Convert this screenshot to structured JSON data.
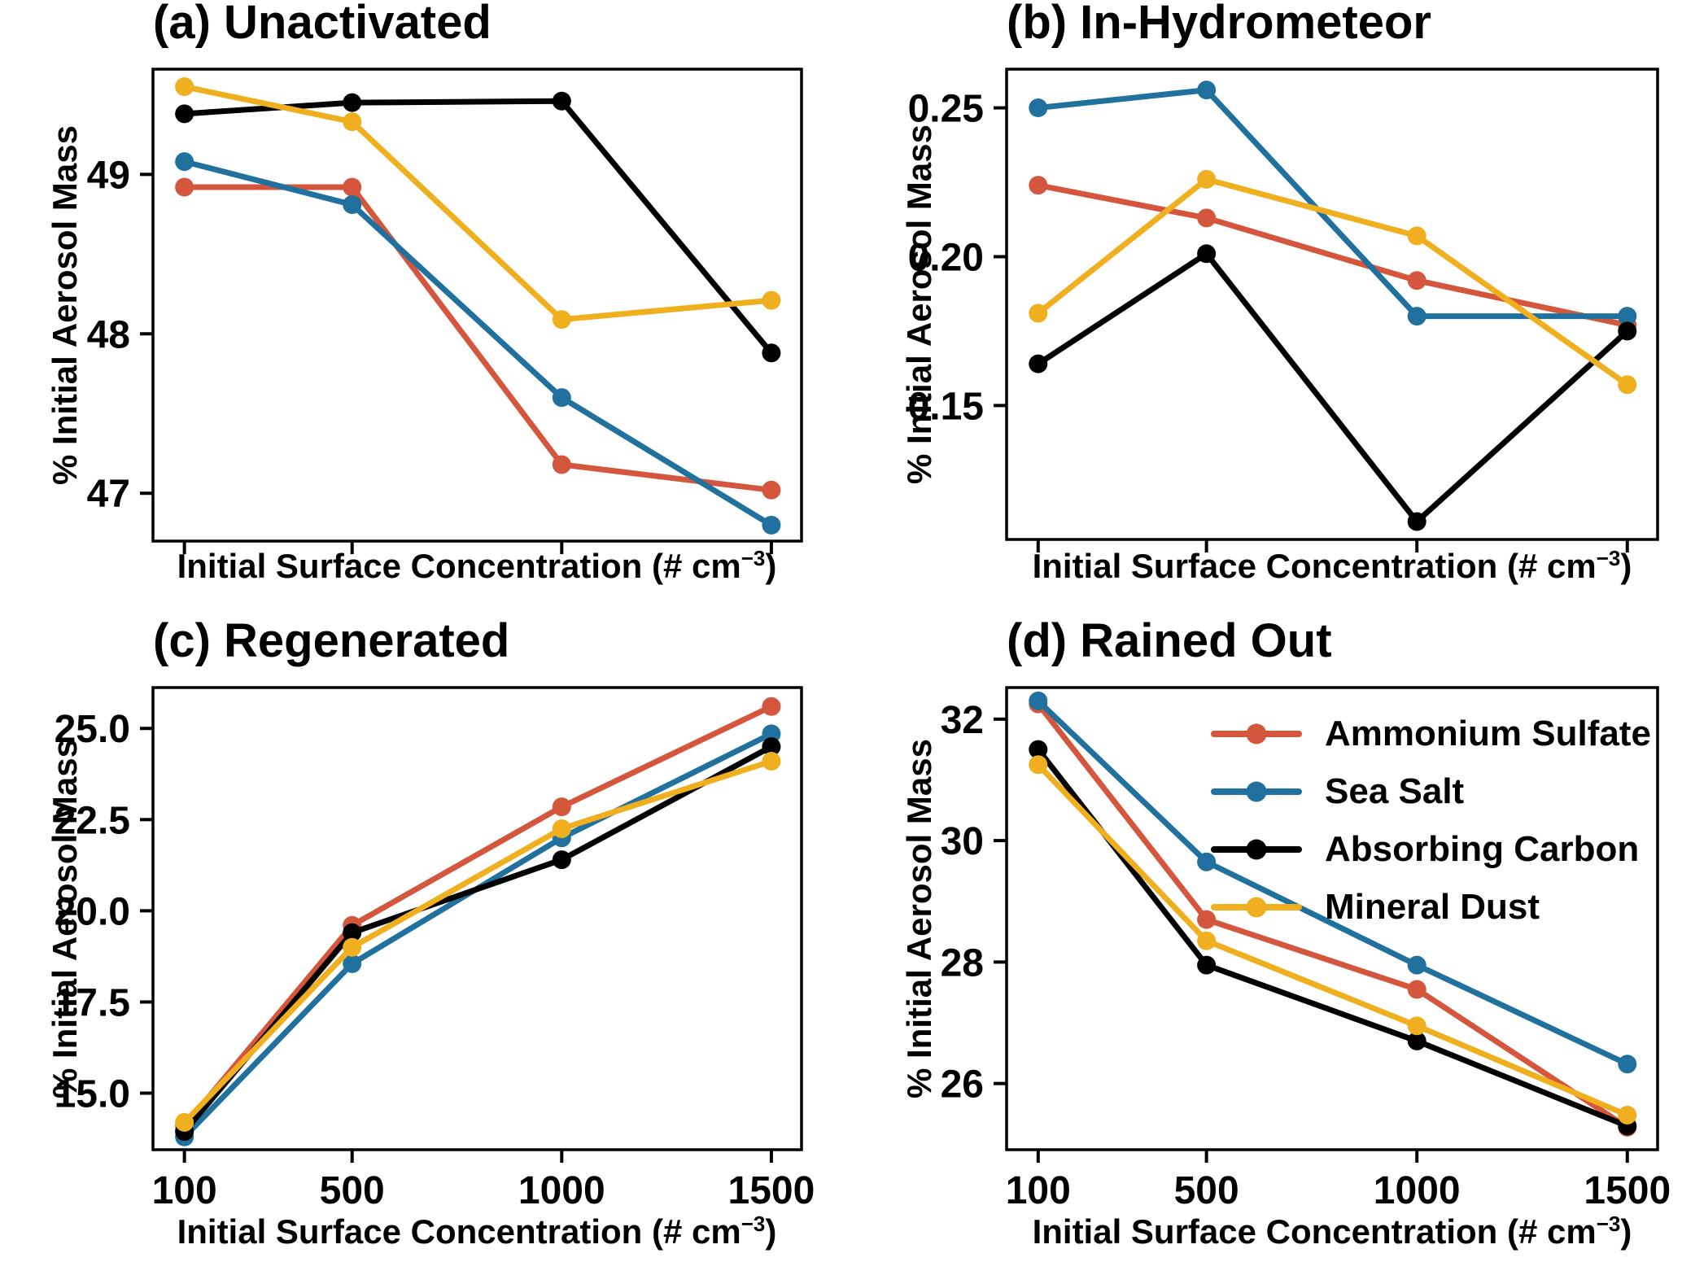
{
  "figure": {
    "background": "#FFFFFF",
    "strings": {
      "ylabel": "% Initial Aerosol Mass",
      "xlabel_prefix": "Initial Surface Concentration (# cm",
      "xlabel_sup": "−3",
      "xlabel_suffix": ")"
    }
  },
  "colors": {
    "ammonium_sulfate": "#D4563C",
    "sea_salt": "#21719E",
    "absorbing_carbon": "#000000",
    "mineral_dust": "#EFAF1E",
    "axis": "#000000"
  },
  "legend": {
    "position": "upper-right-of-panel-d",
    "items": [
      {
        "label": "Ammonium Sulfate",
        "color_key": "ammonium_sulfate"
      },
      {
        "label": "Sea Salt",
        "color_key": "sea_salt"
      },
      {
        "label": "Absorbing Carbon",
        "color_key": "absorbing_carbon"
      },
      {
        "label": "Mineral Dust",
        "color_key": "mineral_dust"
      }
    ]
  },
  "chart_data": [
    {
      "id": "a",
      "type": "line",
      "title": "(a) Unactivated",
      "xlabel": "Initial Surface Concentration (# cm−3)",
      "ylabel": "% Initial Aerosol Mass",
      "x": [
        100,
        500,
        1000,
        1500
      ],
      "x_tick_labels": [
        "100",
        "500",
        "1000",
        "1500"
      ],
      "show_x_tick_labels": false,
      "xlim": [
        25,
        1572
      ],
      "ylim": [
        46.7,
        49.66
      ],
      "grid": false,
      "yticks": [
        {
          "value": 49,
          "label": "49"
        },
        {
          "value": 48,
          "label": "48"
        },
        {
          "value": 47,
          "label": "47"
        }
      ],
      "series": [
        {
          "name": "Ammonium Sulfate",
          "color_key": "ammonium_sulfate",
          "values": [
            48.92,
            48.92,
            47.18,
            47.02
          ]
        },
        {
          "name": "Sea Salt",
          "color_key": "sea_salt",
          "values": [
            49.08,
            48.81,
            47.6,
            46.8
          ]
        },
        {
          "name": "Absorbing Carbon",
          "color_key": "absorbing_carbon",
          "values": [
            49.38,
            49.45,
            49.46,
            47.88
          ]
        },
        {
          "name": "Mineral Dust",
          "color_key": "mineral_dust",
          "values": [
            49.55,
            49.33,
            48.09,
            48.21
          ]
        }
      ]
    },
    {
      "id": "b",
      "type": "line",
      "title": "(b) In-Hydrometeor",
      "xlabel": "Initial Surface Concentration (# cm−3)",
      "ylabel": "% Initial Aerosol Mass",
      "x": [
        100,
        500,
        1000,
        1500
      ],
      "x_tick_labels": [
        "100",
        "500",
        "1000",
        "1500"
      ],
      "show_x_tick_labels": false,
      "xlim": [
        25,
        1572
      ],
      "ylim": [
        0.105,
        0.263
      ],
      "grid": false,
      "yticks": [
        {
          "value": 0.25,
          "label": "0.25"
        },
        {
          "value": 0.2,
          "label": "0.20"
        },
        {
          "value": 0.15,
          "label": "0.15"
        }
      ],
      "series": [
        {
          "name": "Ammonium Sulfate",
          "color_key": "ammonium_sulfate",
          "values": [
            0.224,
            0.213,
            0.192,
            0.177
          ]
        },
        {
          "name": "Sea Salt",
          "color_key": "sea_salt",
          "values": [
            0.25,
            0.256,
            0.18,
            0.18
          ]
        },
        {
          "name": "Absorbing Carbon",
          "color_key": "absorbing_carbon",
          "values": [
            0.164,
            0.201,
            0.111,
            0.175
          ]
        },
        {
          "name": "Mineral Dust",
          "color_key": "mineral_dust",
          "values": [
            0.181,
            0.226,
            0.207,
            0.157
          ]
        }
      ]
    },
    {
      "id": "c",
      "type": "line",
      "title": "(c) Regenerated",
      "xlabel": "Initial Surface Concentration (# cm−3)",
      "ylabel": "% Initial Aerosol Mass",
      "x": [
        100,
        500,
        1000,
        1500
      ],
      "x_tick_labels": [
        "100",
        "500",
        "1000",
        "1500"
      ],
      "show_x_tick_labels": true,
      "xlim": [
        25,
        1572
      ],
      "ylim": [
        13.45,
        26.12
      ],
      "grid": false,
      "yticks": [
        {
          "value": 25.0,
          "label": "25.0"
        },
        {
          "value": 22.5,
          "label": "22.5"
        },
        {
          "value": 20.0,
          "label": "20.0"
        },
        {
          "value": 17.5,
          "label": "17.5"
        },
        {
          "value": 15.0,
          "label": "15.0"
        }
      ],
      "series": [
        {
          "name": "Ammonium Sulfate",
          "color_key": "ammonium_sulfate",
          "values": [
            14.1,
            19.6,
            22.85,
            25.6
          ]
        },
        {
          "name": "Sea Salt",
          "color_key": "sea_salt",
          "values": [
            13.8,
            18.55,
            22.0,
            24.85
          ]
        },
        {
          "name": "Absorbing Carbon",
          "color_key": "absorbing_carbon",
          "values": [
            13.95,
            19.4,
            21.4,
            24.5
          ]
        },
        {
          "name": "Mineral Dust",
          "color_key": "mineral_dust",
          "values": [
            14.2,
            19.0,
            22.25,
            24.1
          ]
        }
      ]
    },
    {
      "id": "d",
      "type": "line",
      "title": "(d) Rained Out",
      "xlabel": "Initial Surface Concentration (# cm−3)",
      "ylabel": "% Initial Aerosol Mass",
      "x": [
        100,
        500,
        1000,
        1500
      ],
      "x_tick_labels": [
        "100",
        "500",
        "1000",
        "1500"
      ],
      "show_x_tick_labels": true,
      "xlim": [
        25,
        1572
      ],
      "ylim": [
        24.91,
        32.52
      ],
      "grid": false,
      "yticks": [
        {
          "value": 32,
          "label": "32"
        },
        {
          "value": 30,
          "label": "30"
        },
        {
          "value": 28,
          "label": "28"
        },
        {
          "value": 26,
          "label": "26"
        }
      ],
      "series": [
        {
          "name": "Ammonium Sulfate",
          "color_key": "ammonium_sulfate",
          "values": [
            32.25,
            28.7,
            27.55,
            25.28
          ]
        },
        {
          "name": "Sea Salt",
          "color_key": "sea_salt",
          "values": [
            32.3,
            29.65,
            27.95,
            26.32
          ]
        },
        {
          "name": "Absorbing Carbon",
          "color_key": "absorbing_carbon",
          "values": [
            31.5,
            27.95,
            26.7,
            25.3
          ]
        },
        {
          "name": "Mineral Dust",
          "color_key": "mineral_dust",
          "values": [
            31.25,
            28.35,
            26.95,
            25.48
          ]
        }
      ]
    }
  ]
}
